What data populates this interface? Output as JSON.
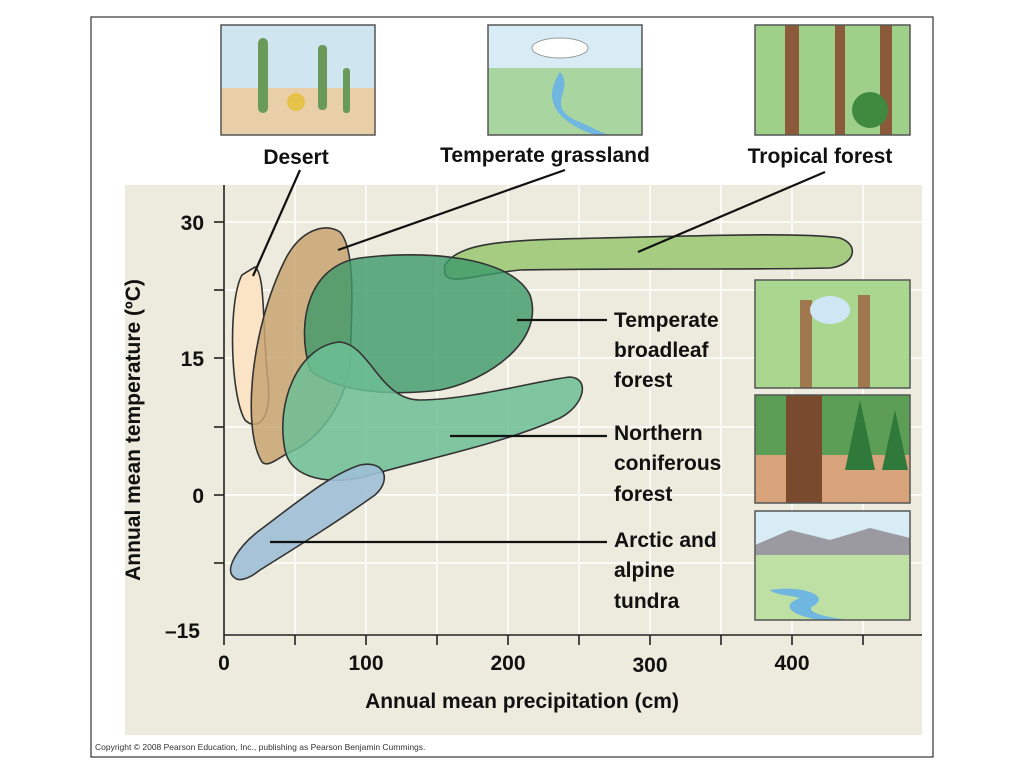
{
  "axes": {
    "y_label": "Annual mean temperature (ºC)",
    "x_label": "Annual mean precipitation (cm)",
    "y_ticks": [
      "30",
      "15",
      "0",
      "–15"
    ],
    "x_ticks": [
      "0",
      "100",
      "200",
      "300",
      "400"
    ]
  },
  "biomes": [
    {
      "lines": [
        "Desert"
      ]
    },
    {
      "lines": [
        "Temperate grassland"
      ]
    },
    {
      "lines": [
        "Tropical forest"
      ]
    },
    {
      "lines": [
        "Temperate",
        "broadleaf",
        "forest"
      ]
    },
    {
      "lines": [
        "Northern",
        "coniferous",
        "forest"
      ]
    },
    {
      "lines": [
        "Arctic and",
        "alpine",
        "tundra"
      ]
    }
  ],
  "copyright": "Copyright © 2008 Pearson Education, Inc., publishing as Pearson Benjamin Cummings."
}
